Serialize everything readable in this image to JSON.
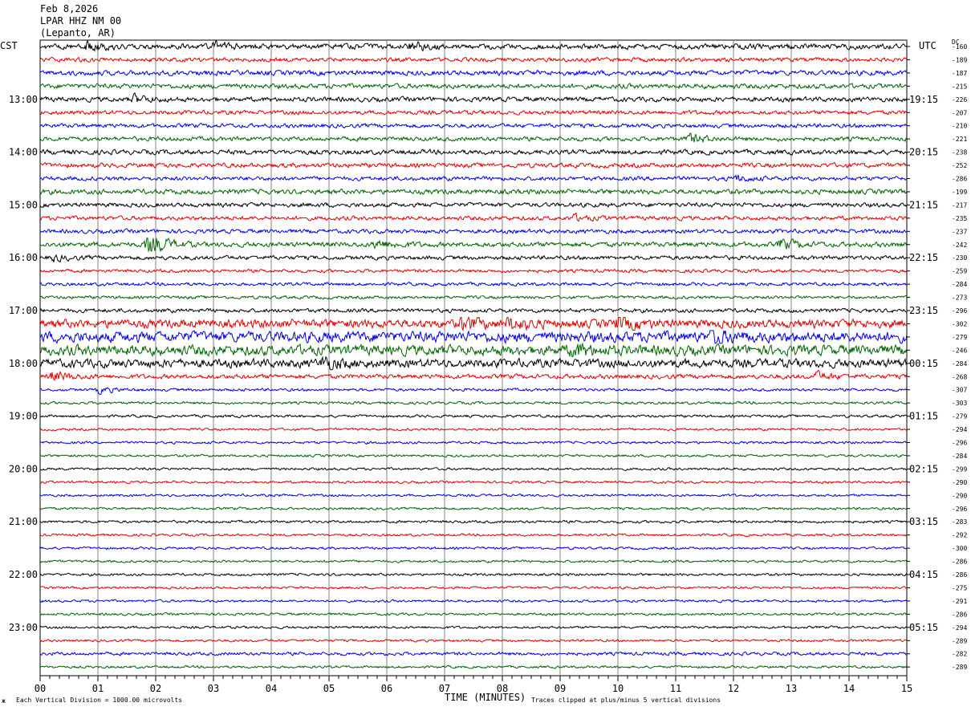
{
  "header": {
    "date": "Feb 8,2026",
    "station": "LPAR HHZ NM 00",
    "location": "(Lepanto, AR)"
  },
  "labels": {
    "left_tz": "CST",
    "right_tz": "UTC",
    "dc": "DC",
    "xlabel": "TIME (MINUTES)",
    "scale_note": "Each Vertical Division = 1000.00 microvolts",
    "clip_note": "Traces clipped at plus/minus 5 vertical divisions",
    "logo_mark": "ж"
  },
  "chart_data": {
    "type": "line",
    "title": "LPAR HHZ NM 00",
    "xlabel": "TIME (MINUTES)",
    "ylabel": "",
    "xlim": [
      0,
      15
    ],
    "x_ticks": [
      "00",
      "01",
      "02",
      "03",
      "04",
      "05",
      "06",
      "07",
      "08",
      "09",
      "10",
      "11",
      "12",
      "13",
      "14",
      "15"
    ],
    "grid": true,
    "traces_per_hour": 4,
    "trace_colors": [
      "#000000",
      "#e00000",
      "#0000e0",
      "#006400"
    ],
    "left_hour_labels": [
      "13:00",
      "14:00",
      "15:00",
      "16:00",
      "17:00",
      "18:00",
      "19:00",
      "20:00",
      "21:00",
      "22:00",
      "23:00"
    ],
    "right_hour_labels": [
      "19:15",
      "20:15",
      "21:15",
      "22:15",
      "23:15",
      "00:15",
      "01:15",
      "02:15",
      "03:15",
      "04:15",
      "05:15"
    ],
    "dc_offsets": [
      -160,
      -189,
      -187,
      -215,
      -226,
      -207,
      -210,
      -221,
      -238,
      -252,
      -286,
      -199,
      -217,
      -235,
      -237,
      -242,
      -230,
      -259,
      -284,
      -273,
      -296,
      -302,
      -279,
      -246,
      -284,
      -268,
      -307,
      -303,
      -279,
      -294,
      -296,
      -284,
      -299,
      -290,
      -290,
      -296,
      -283,
      -292,
      -300,
      -286,
      -286,
      -275,
      -291,
      -286,
      -294,
      -289,
      -282,
      -289
    ],
    "trace_amplitude": [
      2.6,
      2.0,
      2.4,
      2.3,
      2.3,
      2.0,
      2.0,
      2.1,
      2.3,
      2.2,
      2.0,
      2.4,
      2.1,
      2.0,
      2.0,
      2.4,
      2.0,
      1.6,
      1.6,
      1.5,
      1.9,
      4.2,
      5.2,
      5.0,
      4.2,
      2.2,
      1.4,
      1.3,
      1.3,
      1.2,
      1.2,
      1.2,
      1.2,
      1.2,
      1.2,
      1.2,
      1.3,
      1.2,
      1.2,
      1.2,
      1.2,
      1.2,
      1.2,
      1.2,
      1.2,
      1.2,
      1.6,
      1.2
    ],
    "events": [
      {
        "trace": 0,
        "minute": 0.8,
        "amplitude": 4
      },
      {
        "trace": 0,
        "minute": 3.0,
        "amplitude": 3.5
      },
      {
        "trace": 0,
        "minute": 6.4,
        "amplitude": 4
      },
      {
        "trace": 4,
        "minute": 1.6,
        "amplitude": 4
      },
      {
        "trace": 7,
        "minute": 11.2,
        "amplitude": 5
      },
      {
        "trace": 10,
        "minute": 12.0,
        "amplitude": 3.5
      },
      {
        "trace": 13,
        "minute": 9.2,
        "amplitude": 3
      },
      {
        "trace": 15,
        "minute": 1.85,
        "amplitude": 14
      },
      {
        "trace": 15,
        "minute": 5.8,
        "amplitude": 5
      },
      {
        "trace": 15,
        "minute": 12.8,
        "amplitude": 5
      },
      {
        "trace": 16,
        "minute": 0.2,
        "amplitude": 3
      },
      {
        "trace": 21,
        "minute": 7.3,
        "amplitude": 8
      },
      {
        "trace": 21,
        "minute": 8.1,
        "amplitude": 7
      },
      {
        "trace": 21,
        "minute": 10.0,
        "amplitude": 8
      },
      {
        "trace": 22,
        "minute": 11.6,
        "amplitude": 9
      },
      {
        "trace": 23,
        "minute": 9.2,
        "amplitude": 7
      },
      {
        "trace": 24,
        "minute": 4.9,
        "amplitude": 7
      },
      {
        "trace": 25,
        "minute": 0.2,
        "amplitude": 5
      },
      {
        "trace": 25,
        "minute": 13.4,
        "amplitude": 4
      },
      {
        "trace": 26,
        "minute": 1.0,
        "amplitude": 3
      }
    ]
  }
}
